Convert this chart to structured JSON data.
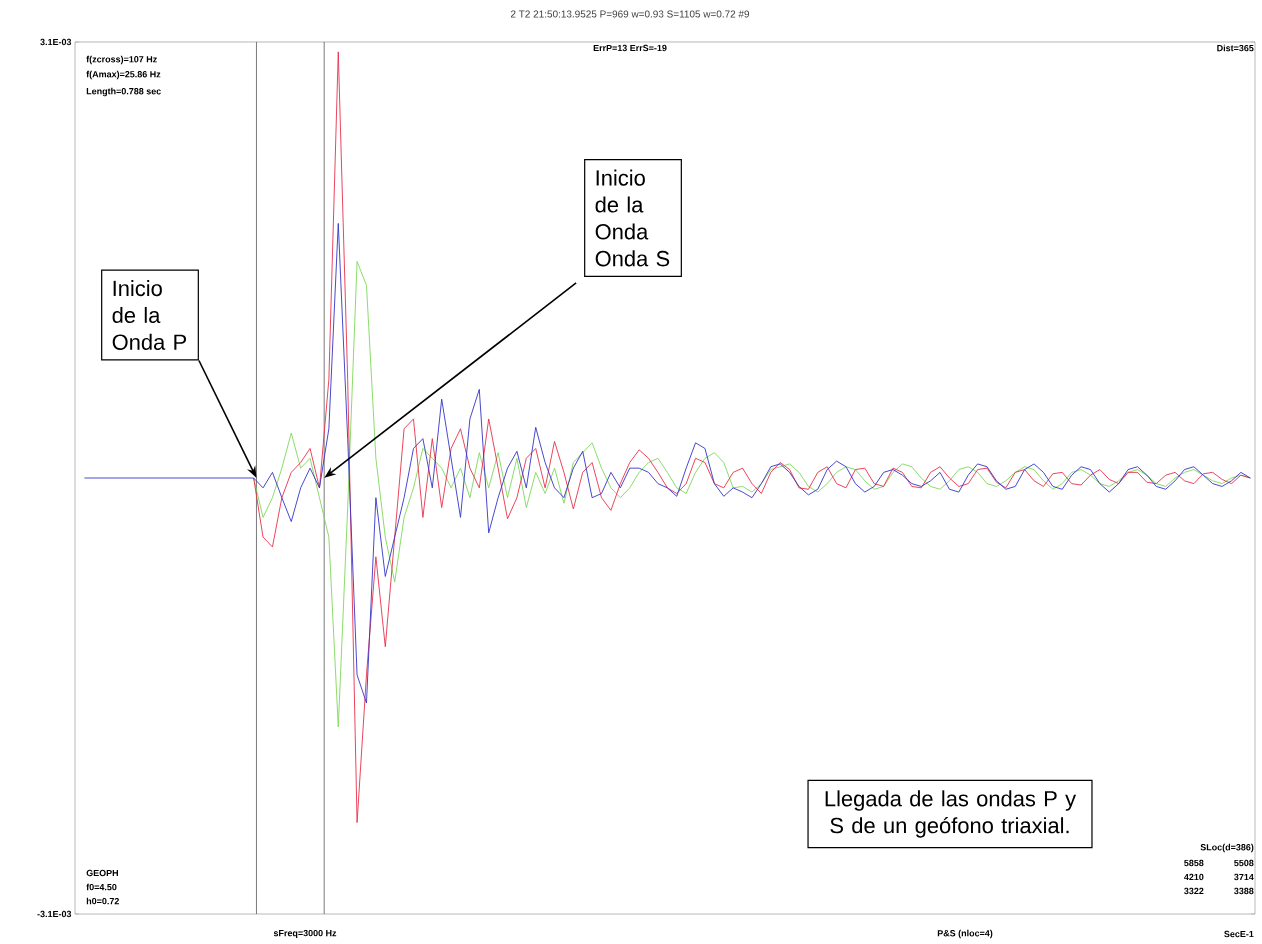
{
  "chart_data": {
    "type": "line",
    "title": "2  T2 21:50:13.9525 P=969 w=0.93 S=1105 w=0.72 #9",
    "xlabel": "SecE-1",
    "categories": [
      null,
      null,
      null,
      null,
      null,
      null,
      null,
      null,
      null,
      null,
      null,
      null,
      null,
      null,
      null,
      null,
      null,
      null,
      null,
      null,
      null,
      null,
      null,
      null,
      null,
      null,
      null,
      null,
      null,
      null,
      null,
      null,
      null,
      null,
      null,
      null,
      null,
      null,
      null,
      null,
      null,
      null,
      null,
      null,
      null,
      null,
      null,
      null,
      null,
      null,
      null,
      null,
      null,
      null,
      null,
      null,
      null,
      null,
      null,
      null,
      null,
      null,
      null,
      null,
      null,
      null,
      null,
      null,
      null,
      null,
      null,
      null,
      null,
      null,
      null,
      null,
      null,
      null,
      null,
      null,
      null,
      null,
      null,
      null,
      null,
      null,
      null,
      null,
      null,
      null,
      null,
      null,
      null,
      null,
      null,
      null,
      null,
      null,
      null,
      null,
      null,
      null,
      null,
      null,
      null,
      null,
      null,
      null,
      null,
      null,
      null,
      null,
      null,
      null,
      null,
      null,
      null,
      null,
      null,
      null,
      null,
      null,
      null,
      null,
      null
    ],
    "series": [
      {
        "color": "#7ed85a",
        "values": [
          null,
          null,
          null,
          null,
          null,
          null,
          null,
          null,
          null,
          null,
          null,
          null,
          null,
          null,
          null,
          null,
          null,
          null,
          0,
          -0.00028,
          -0.00014,
          7e-05,
          0.00032,
          7e-05,
          0.00014,
          -0.00014,
          -0.00042,
          -0.00177,
          -0.00021,
          0.00154,
          0.00137,
          0.00014,
          -0.00042,
          -0.00074,
          -0.00028,
          -7e-05,
          0.00021,
          0.00014,
          7e-05,
          -7e-05,
          7e-05,
          -0.00014,
          0.00018,
          -7e-05,
          0.00018,
          -0.00014,
          0.00014,
          -0.00021,
          4e-05,
          -0.00011,
          7e-05,
          -0.00018,
          0.00011,
          0.00018,
          0.00025,
          7e-05,
          -7e-05,
          -0.00014,
          -7e-05,
          4e-05,
          0.00011,
          0.00014,
          4e-05,
          -7e-05,
          -0.00011,
          4e-05,
          0.00014,
          0.00018,
          0.00011,
          -7e-05,
          -6e-05,
          -0.0001,
          -4e-05,
          6e-05,
          8e-05,
          0.0001,
          4e-05,
          -6e-05,
          -0.0001,
          -4e-05,
          4e-05,
          8e-05,
          6e-05,
          -2e-05,
          -8e-05,
          -6e-05,
          4e-05,
          0.0001,
          8e-05,
          0,
          -6e-05,
          -8e-05,
          -2e-05,
          6e-05,
          8e-05,
          4e-05,
          -4e-05,
          -6e-05,
          -2e-05,
          4e-05,
          8e-05,
          6e-05,
          -2e-05,
          -8e-05,
          -4e-05,
          4e-05,
          6e-05,
          2e-05,
          -4e-05,
          -6e-05,
          -2e-05,
          4e-05,
          6e-05,
          2e-05,
          -4e-05,
          -6e-05,
          0,
          4e-05,
          6e-05,
          2e-05,
          -2e-05,
          -4e-05,
          0,
          2e-05,
          0
        ]
      },
      {
        "color": "#e8304a",
        "values": [
          null,
          null,
          null,
          null,
          null,
          null,
          null,
          null,
          null,
          null,
          null,
          null,
          null,
          null,
          null,
          null,
          null,
          null,
          0,
          -0.00042,
          -0.00049,
          -0.00014,
          4e-05,
          0.00011,
          0.00021,
          -7e-05,
          0.0007,
          0.00303,
          0.0007,
          -0.00245,
          -0.0014,
          -0.00056,
          -0.0012,
          -0.00042,
          0.00035,
          0.00042,
          -0.00028,
          0.00028,
          -0.00021,
          0.00021,
          0.00035,
          7e-05,
          -7e-05,
          0.00042,
          7e-05,
          -0.00029,
          -0.00014,
          0.00014,
          0.00021,
          -7e-05,
          0.00026,
          4e-05,
          -0.00022,
          4e-05,
          0.00011,
          -0.00014,
          -0.00023,
          -4e-05,
          0.00011,
          0.0002,
          0.00014,
          4e-05,
          -7e-05,
          -0.00011,
          -4e-05,
          0.00014,
          0.00011,
          -4e-05,
          -7e-05,
          4e-05,
          7e-05,
          -4e-05,
          -0.00011,
          4e-05,
          0.00011,
          6e-05,
          -7e-05,
          -8e-05,
          4e-05,
          8e-05,
          -4e-05,
          -7e-05,
          6e-05,
          7e-05,
          -4e-05,
          -6e-05,
          7e-05,
          4e-05,
          -6e-05,
          -7e-05,
          4e-05,
          8e-05,
          0,
          -6e-05,
          -4e-05,
          6e-05,
          7e-05,
          -3e-05,
          -7e-05,
          4e-05,
          6e-05,
          -2e-05,
          -6e-05,
          3e-05,
          4e-05,
          -4e-05,
          -5e-05,
          2e-05,
          6e-05,
          -1e-05,
          -4e-05,
          4e-05,
          4e-05,
          -3e-05,
          -4e-05,
          2e-05,
          4e-05,
          -2e-05,
          -4e-05,
          3e-05,
          4e-05,
          -1e-05,
          -4e-05,
          2e-05,
          0
        ]
      },
      {
        "color": "#3434c8",
        "values": [
          0,
          0,
          0,
          0,
          0,
          0,
          0,
          0,
          0,
          0,
          0,
          0,
          0,
          0,
          0,
          0,
          0,
          0,
          0,
          -7e-05,
          4e-05,
          -0.00014,
          -0.00031,
          -7e-05,
          7e-05,
          -7e-05,
          0.00035,
          0.00181,
          0.00028,
          -0.0014,
          -0.0016,
          -0.00014,
          -0.0007,
          -0.00042,
          -0.00014,
          0.00021,
          0.00028,
          -7e-05,
          0.00056,
          0.00014,
          -0.00028,
          0.00042,
          0.00063,
          -0.00039,
          -0.00014,
          7e-05,
          0.00019,
          -7e-05,
          0.00036,
          0.00011,
          -7e-05,
          -0.00014,
          7e-05,
          0.00019,
          -0.00014,
          -0.00011,
          4e-05,
          -7e-05,
          7e-05,
          7e-05,
          4e-05,
          -4e-05,
          -7e-05,
          -0.00013,
          7e-05,
          0.00025,
          0.00021,
          -4e-05,
          -0.00013,
          -7e-05,
          -0.0001,
          -0.00014,
          -4e-05,
          8e-05,
          0.0001,
          4e-05,
          -6e-05,
          -0.00012,
          -8e-05,
          6e-05,
          0.00012,
          8e-05,
          -4e-05,
          -0.0001,
          -6e-05,
          4e-05,
          6e-05,
          2e-05,
          -4e-05,
          -6e-05,
          -2e-05,
          4e-05,
          -8e-05,
          -0.0001,
          2e-05,
          0.0001,
          8e-05,
          -2e-05,
          -8e-05,
          -6e-05,
          6e-05,
          0.0001,
          4e-05,
          -6e-05,
          -8e-05,
          2e-05,
          8e-05,
          6e-05,
          -4e-05,
          -0.0001,
          -4e-05,
          6e-05,
          8e-05,
          2e-05,
          -6e-05,
          -8e-05,
          -2e-05,
          6e-05,
          8e-05,
          2e-05,
          -4e-05,
          -6e-05,
          -2e-05,
          4e-05,
          0
        ]
      }
    ],
    "ylim": [
      -0.0031,
      0.0031
    ],
    "yticks": [
      {
        "value": 0.0031,
        "label": "3.1E-03"
      },
      {
        "value": -0.0031,
        "label": "-3.1E-03"
      }
    ],
    "annotations": [
      "ErrP=13  ErrS=-19",
      "Dist=365",
      "f(zcross)=107 Hz",
      "f(Amax)=25.86 Hz",
      "Length=0.788 sec",
      "GEOPH",
      "f0=4.50",
      "h0=0.72",
      "SLoc(d=386)",
      "5858",
      "5508",
      "4210",
      "3714",
      "3322",
      "3388",
      "sFreq=3000 Hz",
      "P&S (nloc=4)",
      "Inicio de la Onda P",
      "Inicio de la Onda Onda S",
      "Llegada de las ondas P y S de un geófono triaxial."
    ]
  }
}
